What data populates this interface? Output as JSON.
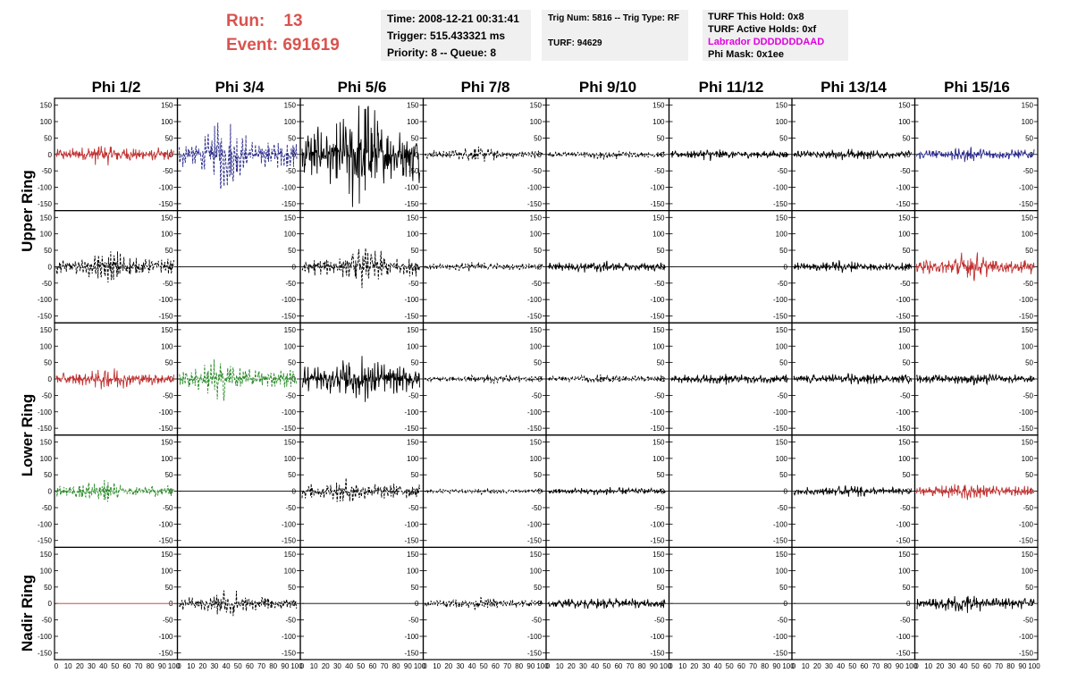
{
  "header": {
    "run_label": "Run:",
    "run_value": "13",
    "event_label": "Event:",
    "event_value": "691619",
    "accent_color": "#d9534f"
  },
  "time_box": {
    "time": "Time: 2008-12-21 00:31:41",
    "trigger": "Trigger: 515.433321 ms",
    "priority": "Priority: 8 -- Queue: 8"
  },
  "trig_box": {
    "trig": "Trig Num: 5816 -- Trig Type: RF",
    "turf": "TURF: 94629"
  },
  "turf_box": {
    "this_hold": "TURF This Hold: 0x8",
    "active_holds": "TURF Active Holds: 0xf",
    "labrador": "Labrador DDDDDDDAAD",
    "labrador_color": "#e000e0",
    "phi_mask": "Phi Mask: 0x1ee"
  },
  "columns": [
    "Phi 1/2",
    "Phi 3/4",
    "Phi 5/6",
    "Phi 7/8",
    "Phi 9/10",
    "Phi 11/12",
    "Phi 13/14",
    "Phi 15/16"
  ],
  "rows": [
    "Upper Ring",
    "Lower Ring",
    "Nadir Ring"
  ],
  "y_ticks": [
    "150",
    "100",
    "50",
    "0",
    "-50",
    "-100",
    "-150"
  ],
  "x_ticks": [
    "0",
    "10",
    "20",
    "30",
    "40",
    "50",
    "60",
    "70",
    "80",
    "90",
    "100"
  ],
  "chart_data": {
    "type": "line",
    "ylim": [
      -160,
      160
    ],
    "xlim": [
      0,
      100
    ],
    "panel_rows": 5,
    "panel_cols": 8,
    "panels": [
      [
        {
          "color": "#c03030",
          "dash": false,
          "amp": 22,
          "burst": [
            40,
            0.7
          ]
        },
        {
          "color": "#2a2a8a",
          "dash": true,
          "amp": 45,
          "burst": [
            40,
            1.8
          ]
        },
        {
          "color": "#000",
          "dash": false,
          "amp": 90,
          "burst": [
            50,
            1.4
          ]
        },
        {
          "color": "#000",
          "dash": true,
          "amp": 14,
          "burst": [
            45,
            1.0
          ]
        },
        {
          "color": "#000",
          "dash": true,
          "amp": 10,
          "burst": [
            50,
            0.6
          ]
        },
        {
          "color": "#000",
          "dash": false,
          "amp": 12,
          "burst": [
            35,
            0.7
          ]
        },
        {
          "color": "#000",
          "dash": false,
          "amp": 13,
          "burst": [
            50,
            0.5
          ]
        },
        {
          "color": "#2a2a8a",
          "dash": false,
          "amp": 16,
          "burst": [
            40,
            0.6
          ]
        }
      ],
      [
        {
          "color": "#000",
          "dash": true,
          "amp": 25,
          "burst": [
            45,
            1.5
          ]
        },
        {
          "color": "#000",
          "dash": false,
          "amp": 0,
          "burst": [
            50,
            0
          ]
        },
        {
          "color": "#000",
          "dash": true,
          "amp": 30,
          "burst": [
            55,
            1.3
          ]
        },
        {
          "color": "#000",
          "dash": true,
          "amp": 10,
          "burst": [
            40,
            0.7
          ]
        },
        {
          "color": "#000",
          "dash": false,
          "amp": 14,
          "burst": [
            40,
            0.5
          ]
        },
        {
          "color": "#000",
          "dash": false,
          "amp": 0,
          "burst": [
            50,
            0
          ]
        },
        {
          "color": "#000",
          "dash": false,
          "amp": 13,
          "burst": [
            40,
            0.6
          ]
        },
        {
          "color": "#c03030",
          "dash": false,
          "amp": 24,
          "burst": [
            45,
            1.3
          ]
        }
      ],
      [
        {
          "color": "#c03030",
          "dash": false,
          "amp": 20,
          "burst": [
            45,
            1.0
          ]
        },
        {
          "color": "#2a8a2a",
          "dash": true,
          "amp": 32,
          "burst": [
            35,
            1.3
          ]
        },
        {
          "color": "#000",
          "dash": false,
          "amp": 45,
          "burst": [
            50,
            1.0
          ]
        },
        {
          "color": "#000",
          "dash": true,
          "amp": 10,
          "burst": [
            60,
            0.6
          ]
        },
        {
          "color": "#000",
          "dash": true,
          "amp": 10,
          "burst": [
            50,
            0.5
          ]
        },
        {
          "color": "#000",
          "dash": false,
          "amp": 14,
          "burst": [
            50,
            0.4
          ]
        },
        {
          "color": "#000",
          "dash": false,
          "amp": 15,
          "burst": [
            50,
            0.4
          ]
        },
        {
          "color": "#000",
          "dash": false,
          "amp": 14,
          "burst": [
            50,
            0.5
          ]
        }
      ],
      [
        {
          "color": "#2a8a2a",
          "dash": true,
          "amp": 18,
          "burst": [
            35,
            1.6
          ]
        },
        {
          "color": "#000",
          "dash": false,
          "amp": 0,
          "burst": [
            50,
            0
          ]
        },
        {
          "color": "#000",
          "dash": true,
          "amp": 25,
          "burst": [
            40,
            0.8
          ]
        },
        {
          "color": "#000",
          "dash": true,
          "amp": 7,
          "burst": [
            50,
            0.4
          ]
        },
        {
          "color": "#000",
          "dash": false,
          "amp": 10,
          "burst": [
            50,
            0.4
          ]
        },
        {
          "color": "#000",
          "dash": false,
          "amp": 0,
          "burst": [
            50,
            0
          ]
        },
        {
          "color": "#000",
          "dash": false,
          "amp": 13,
          "burst": [
            50,
            0.5
          ]
        },
        {
          "color": "#c03030",
          "dash": false,
          "amp": 17,
          "burst": [
            40,
            1.0
          ]
        }
      ],
      [
        {
          "color": "#c03030",
          "dash": false,
          "amp": 0,
          "burst": [
            50,
            0
          ]
        },
        {
          "color": "#000",
          "dash": true,
          "amp": 20,
          "burst": [
            40,
            1.6
          ]
        },
        {
          "color": "#000",
          "dash": false,
          "amp": 0,
          "burst": [
            50,
            0
          ]
        },
        {
          "color": "#000",
          "dash": true,
          "amp": 13,
          "burst": [
            50,
            0.8
          ]
        },
        {
          "color": "#000",
          "dash": false,
          "amp": 15,
          "burst": [
            50,
            0.4
          ]
        },
        {
          "color": "#000",
          "dash": false,
          "amp": 0,
          "burst": [
            50,
            0
          ]
        },
        {
          "color": "#000",
          "dash": false,
          "amp": 0,
          "burst": [
            50,
            0
          ]
        },
        {
          "color": "#000",
          "dash": false,
          "amp": 18,
          "burst": [
            40,
            1.2
          ]
        }
      ]
    ]
  }
}
